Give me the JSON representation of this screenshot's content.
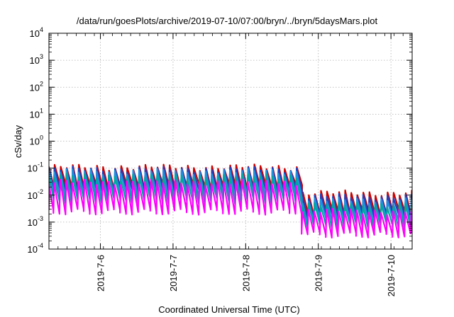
{
  "chart_data": {
    "type": "line",
    "title": "/data/run/goesPlots/archive/2019-07-10/07:00/bryn/../bryn/5daysMars.plot",
    "xlabel": "Coordinated Universal Time (UTC)",
    "ylabel": "cSv/day",
    "y_scale": "log",
    "ylim_exponents": [
      -4,
      4
    ],
    "y_tick_base": "10",
    "y_tick_exponents": [
      "-4",
      "-3",
      "-2",
      "-1",
      "0",
      "1",
      "2",
      "3",
      "4"
    ],
    "xlim": [
      "2019-07-05 07:00",
      "2019-07-10 07:00"
    ],
    "x_ticks": [
      "2019-7-6",
      "2019-7-7",
      "2019-7-8",
      "2019-7-9",
      "2019-7-10"
    ],
    "grid": true,
    "legend": "none",
    "sawtooth_period_hours": 2,
    "level_shift_at": "2019-07-08 18:00",
    "series": [
      {
        "color": "#cc0000",
        "peak_before": 0.11,
        "trough_before": 0.02,
        "peak_after": 0.012,
        "trough_after": 0.0022
      },
      {
        "color": "#1f3fbf",
        "peak_before": 0.09,
        "trough_before": 0.014,
        "peak_after": 0.009,
        "trough_after": 0.0016
      },
      {
        "color": "#1e90e0",
        "peak_before": 0.075,
        "trough_before": 0.009,
        "peak_after": 0.0065,
        "trough_after": 0.0011
      },
      {
        "color": "#00a8a0",
        "peak_before": 0.05,
        "trough_before": 0.006,
        "peak_after": 0.0045,
        "trough_after": 0.0007
      },
      {
        "color": "#ff00ff",
        "peak_before": 0.03,
        "trough_before": 0.0025,
        "peak_after": 0.0025,
        "trough_after": 0.00035
      }
    ]
  }
}
